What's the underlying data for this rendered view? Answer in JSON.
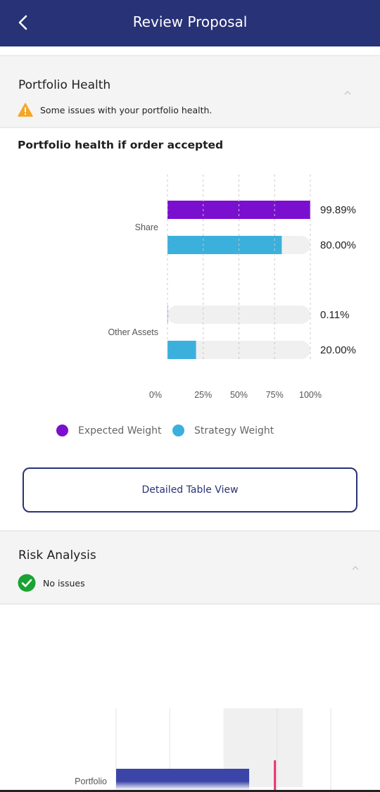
{
  "header": {
    "title": "Review Proposal",
    "back_icon": "chevron-left-icon",
    "background": "#283276"
  },
  "portfolio_health": {
    "title": "Portfolio Health",
    "status_icon": "warning-icon",
    "status_text": "Some issues with your portfolio health.",
    "status_color": "#f5a623"
  },
  "health_chart_title": "Portfolio health if order accepted",
  "chart_data": [
    {
      "type": "bar",
      "orientation": "horizontal",
      "title": "Portfolio health if order accepted",
      "categories": [
        "Share",
        "Other Assets"
      ],
      "series": [
        {
          "name": "Expected Weight",
          "color": "#7b0fcf",
          "values": [
            99.89,
            0.11
          ],
          "labels": [
            "99.89%",
            "0.11%"
          ]
        },
        {
          "name": "Strategy Weight",
          "color": "#3bb0dc",
          "values": [
            80.0,
            20.0
          ],
          "labels": [
            "80.00%",
            "20.00%"
          ]
        }
      ],
      "xlim": [
        0,
        100
      ],
      "x_ticks": [
        "0%",
        "25%",
        "50%",
        "75%",
        "100%"
      ],
      "grid": "vertical-dashed",
      "legend": "bottom"
    },
    {
      "type": "bar",
      "orientation": "horizontal",
      "categories": [
        "Portfolio"
      ],
      "series": [
        {
          "color": "#3b45a8",
          "values": [
            62
          ]
        }
      ],
      "marker": {
        "color": "#e8306a",
        "value": 74
      },
      "band": [
        50,
        87
      ],
      "xlim": [
        0,
        100
      ]
    }
  ],
  "legend": [
    {
      "label": "Expected Weight",
      "color": "#7b0fcf"
    },
    {
      "label": "Strategy Weight",
      "color": "#3bb0dc"
    }
  ],
  "table_button": {
    "label": "Detailed Table View"
  },
  "risk_analysis": {
    "title": "Risk Analysis",
    "status_icon": "check-circle-icon",
    "status_text": "No issues",
    "status_color": "#1aa233"
  }
}
